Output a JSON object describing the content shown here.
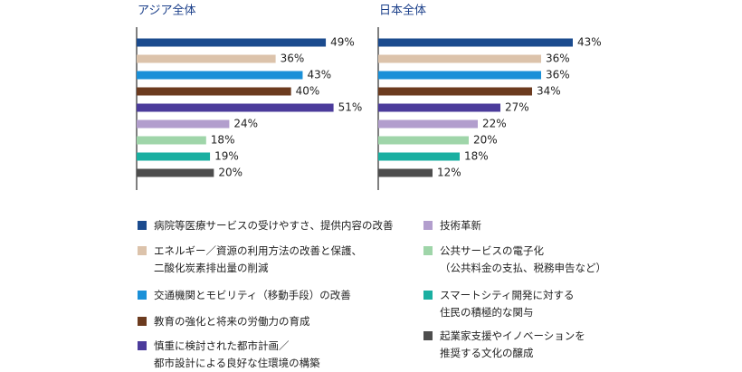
{
  "chart_data": [
    {
      "type": "hbar",
      "title": "アジア全体",
      "values": [
        49,
        36,
        43,
        40,
        51,
        24,
        18,
        19,
        20
      ],
      "value_labels": [
        "49%",
        "36%",
        "43%",
        "40%",
        "51%",
        "24%",
        "18%",
        "19%",
        "20%"
      ],
      "xlim": [
        0,
        60
      ]
    },
    {
      "type": "hbar",
      "title": "日本全体",
      "values": [
        43,
        36,
        36,
        34,
        27,
        22,
        20,
        18,
        12
      ],
      "value_labels": [
        "43%",
        "36%",
        "36%",
        "34%",
        "27%",
        "22%",
        "20%",
        "18%",
        "12%"
      ],
      "xlim": [
        0,
        50
      ]
    }
  ],
  "legend": {
    "items": [
      {
        "label": "病院等医療サービスの受けやすさ、提供内容の改善",
        "color": "#1b4b8e"
      },
      {
        "label": "エネルギー／資源の利用方法の改善と保護、\n二酸化炭素排出量の削減",
        "color": "#dcc3ab"
      },
      {
        "label": "交通機関とモビリティ（移動手段）の改善",
        "color": "#1a90d8"
      },
      {
        "label": "教育の強化と将来の労働力の育成",
        "color": "#6c3b1f"
      },
      {
        "label": "慎重に検討された都市計画／\n都市設計による良好な住環境の構築",
        "color": "#4b3b9b"
      },
      {
        "label": "技術革新",
        "color": "#b29ecd"
      },
      {
        "label": "公共サービスの電子化\n（公共料金の支払、税務申告など）",
        "color": "#9fd5a9"
      },
      {
        "label": "スマートシティ開発に対する\n住民の積極的な関与",
        "color": "#1aafa1"
      },
      {
        "label": "起業家支援やイノベーションを\n推奨する文化の醸成",
        "color": "#4d4d4d"
      }
    ]
  }
}
